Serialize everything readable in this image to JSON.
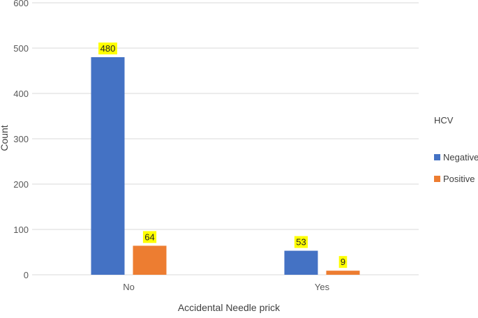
{
  "chart_data": {
    "type": "bar",
    "title": "",
    "xlabel": "Accidental Needle prick",
    "ylabel": "Count",
    "categories": [
      "No",
      "Yes"
    ],
    "series": [
      {
        "name": "Negative",
        "values": [
          480,
          53
        ],
        "color": "#4472C4"
      },
      {
        "name": "Positive",
        "values": [
          64,
          9
        ],
        "color": "#ED7D31"
      }
    ],
    "ylim": [
      0,
      600
    ],
    "yticks": [
      "0",
      "100",
      "200",
      "300",
      "400",
      "500",
      "600"
    ],
    "ytick_values": [
      0,
      100,
      200,
      300,
      400,
      500,
      600
    ],
    "grid": true,
    "legend": {
      "title": "HCV",
      "position": "right"
    },
    "data_labels": true,
    "data_label_highlight": "#FFFF00"
  }
}
